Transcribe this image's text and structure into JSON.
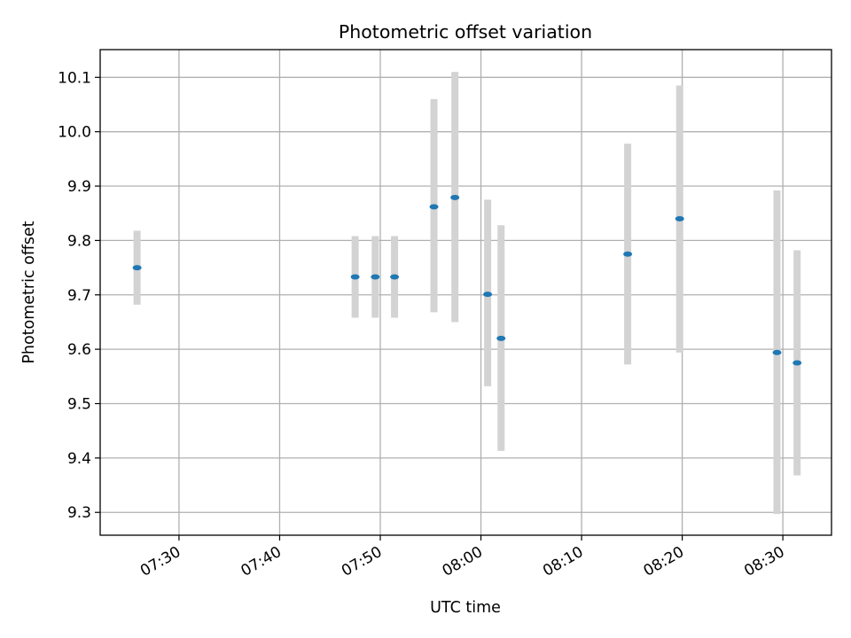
{
  "chart_data": {
    "type": "scatter",
    "title": "Photometric offset variation",
    "xlabel": "UTC time",
    "ylabel": "Photometric offset",
    "x_axis": {
      "kind": "time",
      "range": [
        "07:22:10",
        "08:34:50"
      ],
      "ticks": [
        "07:30",
        "07:40",
        "07:50",
        "08:00",
        "08:10",
        "08:20",
        "08:30"
      ]
    },
    "y_axis": {
      "range": [
        9.258,
        10.151
      ],
      "ticks": [
        9.3,
        9.4,
        9.5,
        9.6,
        9.7,
        9.8,
        9.9,
        10.0,
        10.1
      ],
      "tick_labels": [
        "9.3",
        "9.4",
        "9.5",
        "9.6",
        "9.7",
        "9.8",
        "9.9",
        "10.0",
        "10.1"
      ]
    },
    "grid": true,
    "point_color": "#1f77b4",
    "errorbar_color": "#d3d3d3",
    "series": [
      {
        "points": [
          {
            "time": "07:25:50",
            "value": 9.75,
            "low": 9.682,
            "high": 9.818
          },
          {
            "time": "07:47:30",
            "value": 9.733,
            "low": 9.658,
            "high": 9.808
          },
          {
            "time": "07:49:30",
            "value": 9.733,
            "low": 9.658,
            "high": 9.808
          },
          {
            "time": "07:51:25",
            "value": 9.733,
            "low": 9.658,
            "high": 9.808
          },
          {
            "time": "07:55:20",
            "value": 9.862,
            "low": 9.668,
            "high": 10.06
          },
          {
            "time": "07:57:25",
            "value": 9.879,
            "low": 9.65,
            "high": 10.11
          },
          {
            "time": "08:00:40",
            "value": 9.701,
            "low": 9.532,
            "high": 9.875
          },
          {
            "time": "08:02:00",
            "value": 9.62,
            "low": 9.413,
            "high": 9.828
          },
          {
            "time": "08:14:35",
            "value": 9.775,
            "low": 9.572,
            "high": 9.978
          },
          {
            "time": "08:19:45",
            "value": 9.84,
            "low": 9.594,
            "high": 10.085
          },
          {
            "time": "08:29:25",
            "value": 9.594,
            "low": 9.297,
            "high": 9.892
          },
          {
            "time": "08:31:25",
            "value": 9.575,
            "low": 9.368,
            "high": 9.782
          }
        ]
      }
    ]
  }
}
